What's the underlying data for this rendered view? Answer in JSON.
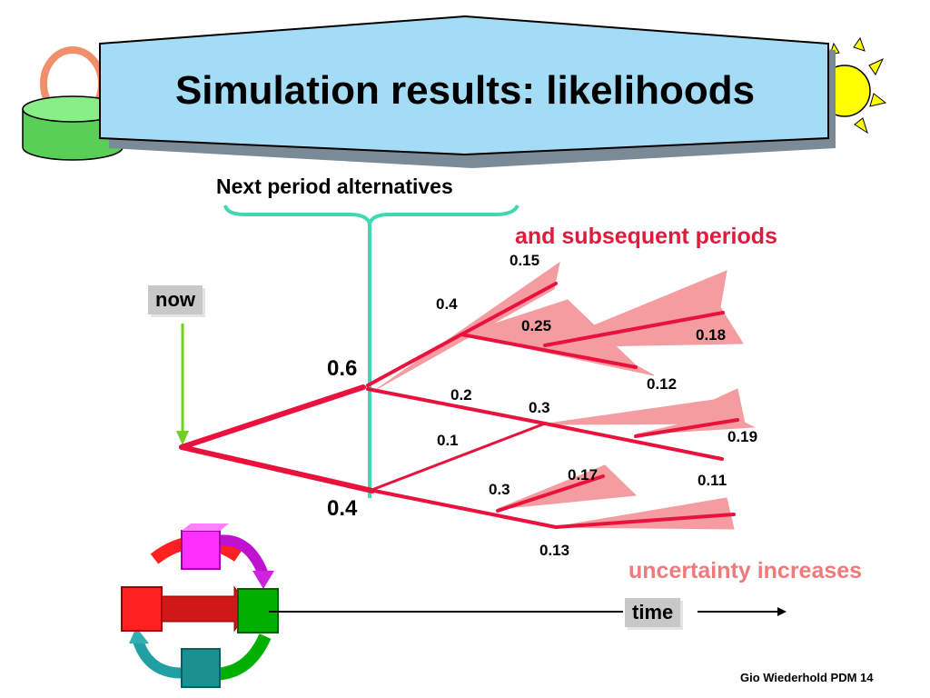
{
  "title": "Simulation results: likelihoods",
  "labels": {
    "next_period": "Next period alternatives",
    "subsequent": "and subsequent periods",
    "now": "now",
    "uncertainty": "uncertainty increases",
    "time": "time",
    "footer": "Gio Wiederhold PDM 14"
  },
  "probabilities": {
    "upper_branch": "0.6",
    "lower_branch": "0.4",
    "p_04": "0.4",
    "p_015": "0.15",
    "p_025": "0.25",
    "p_018": "0.18",
    "p_012": "0.12",
    "p_02": "0.2",
    "p_03_upper": "0.3",
    "p_019": "0.19",
    "p_011": "0.11",
    "p_01": "0.1",
    "p_03_lower": "0.3",
    "p_017": "0.17",
    "p_013": "0.13"
  },
  "colors": {
    "title_bg": "#a4dcf6",
    "branch": "#e8123c",
    "cone": "#f49ca0",
    "brace": "#40d8b0",
    "now_arrow": "#70d020",
    "sun": "#ffff00",
    "label_red": "#e01a3c",
    "label_pink": "#f07a7a"
  }
}
